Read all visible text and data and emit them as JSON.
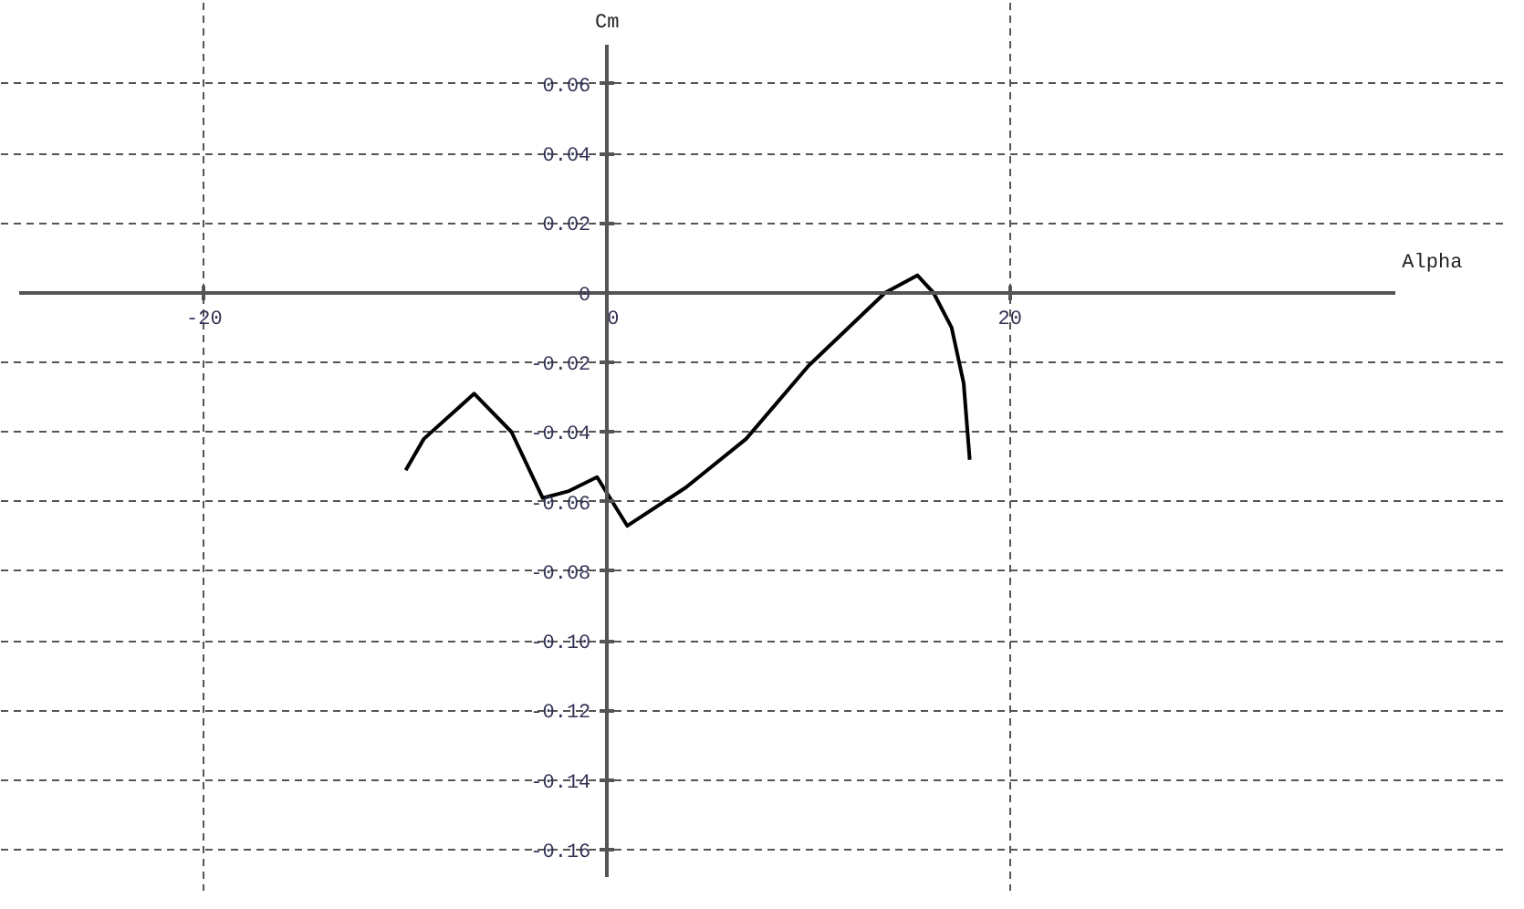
{
  "chart_data": {
    "type": "line",
    "xlabel": "Alpha",
    "ylabel": "Cm",
    "x": [
      -10.0,
      -9.1,
      -6.6,
      -4.75,
      -3.2,
      -1.9,
      -0.5,
      1.0,
      3.9,
      6.9,
      10.0,
      13.8,
      15.4,
      16.2,
      17.1,
      17.7,
      18.0
    ],
    "series": [
      {
        "color": "#000000",
        "values": [
          -0.051,
          -0.042,
          -0.029,
          -0.04,
          -0.059,
          -0.057,
          -0.053,
          -0.067,
          -0.056,
          -0.042,
          -0.021,
          0.0,
          0.005,
          0.0,
          -0.01,
          -0.026,
          -0.048
        ]
      }
    ],
    "xlim": [
      -29.2,
      39.1
    ],
    "ylim": [
      -0.168,
      0.071
    ],
    "xticks": [
      -20,
      0,
      20
    ],
    "yticks": [
      {
        "value": 0.06,
        "label": "0.06"
      },
      {
        "value": 0.04,
        "label": "0.04"
      },
      {
        "value": 0.02,
        "label": "0.02"
      },
      0,
      {
        "value": -0.02,
        "label": "-0.02"
      },
      {
        "value": -0.04,
        "label": "-0.04"
      },
      {
        "value": -0.06,
        "label": "-0.06"
      },
      {
        "value": -0.08,
        "label": "-0.08"
      },
      {
        "value": -0.1,
        "label": "-0.10"
      },
      {
        "value": -0.12,
        "label": "-0.12"
      },
      {
        "value": -0.14,
        "label": "-0.14"
      },
      {
        "value": -0.16,
        "label": "-0.16"
      }
    ],
    "grid": true,
    "marker": "none",
    "line_style": "solid"
  }
}
